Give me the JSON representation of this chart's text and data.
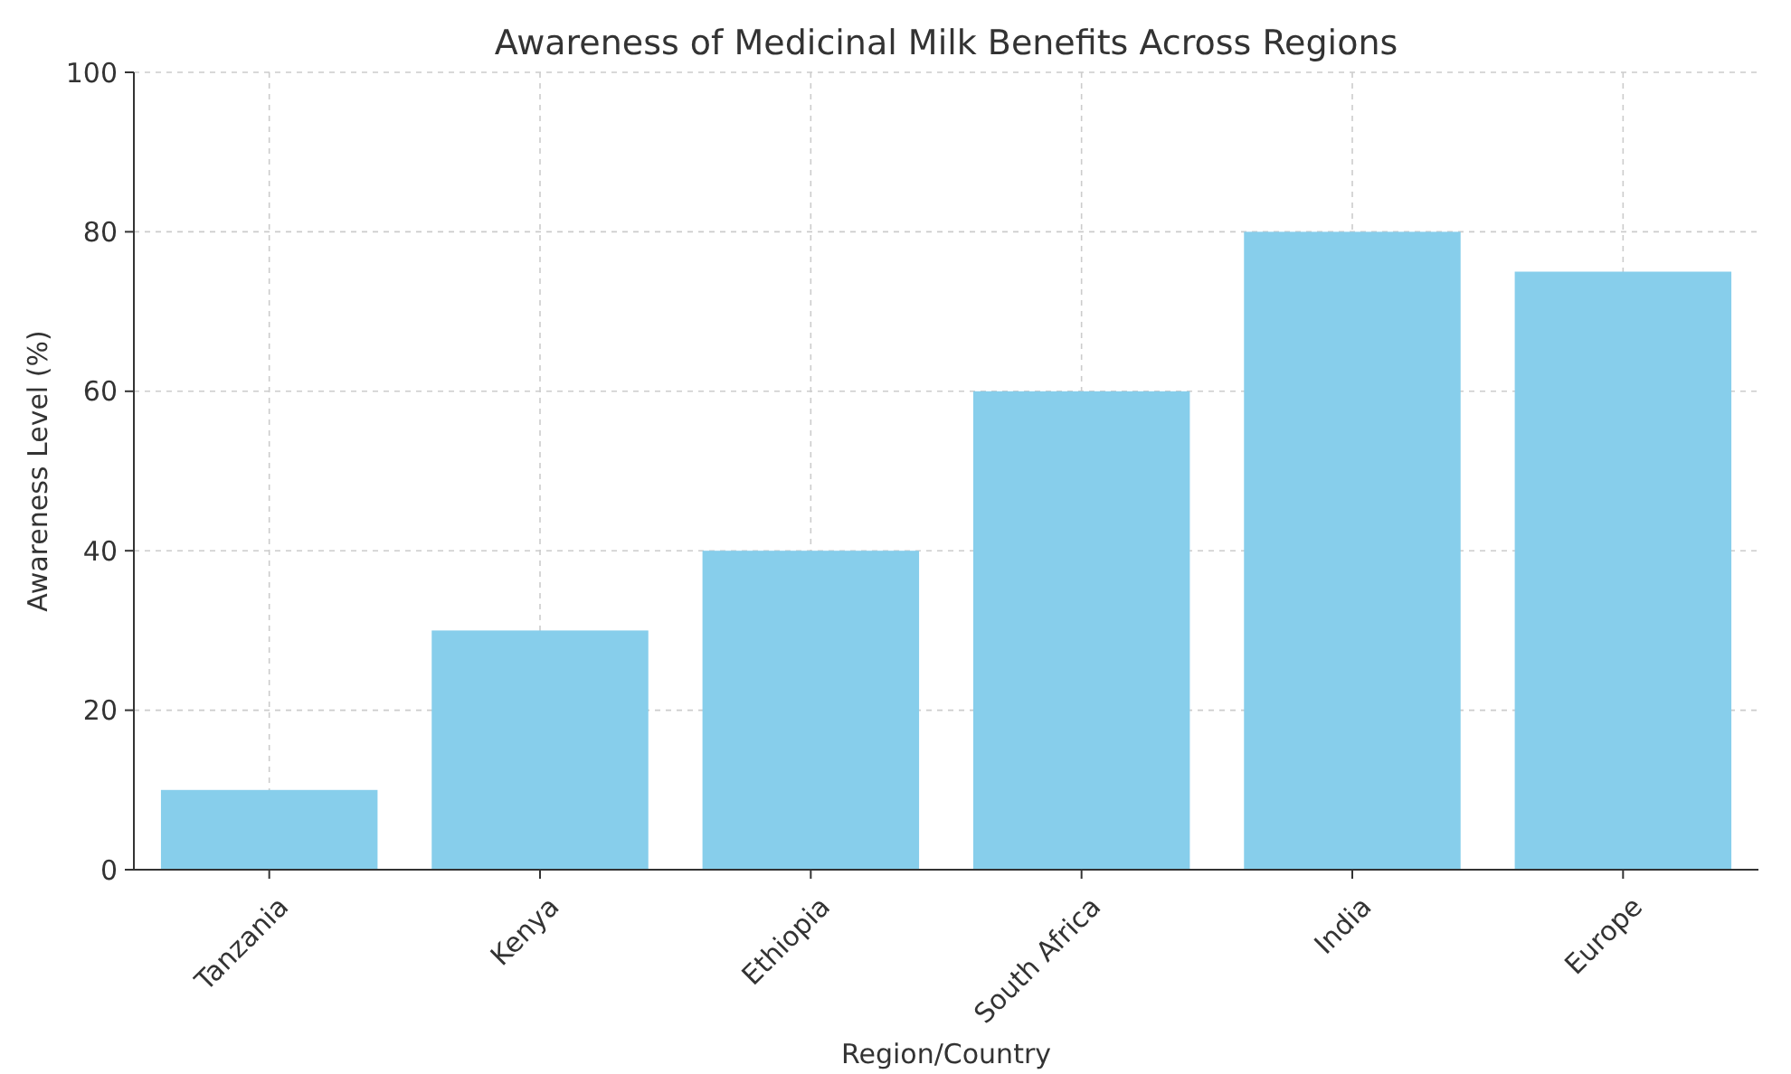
{
  "chart_data": {
    "type": "bar",
    "title": "Awareness of Medicinal Milk Benefits Across Regions",
    "xlabel": "Region/Country",
    "ylabel": "Awareness Level (%)",
    "categories": [
      "Tanzania",
      "Kenya",
      "Ethiopia",
      "South Africa",
      "India",
      "Europe"
    ],
    "values": [
      10,
      30,
      40,
      60,
      80,
      75
    ],
    "color": "#87ceeb",
    "ylim": [
      0,
      100
    ],
    "yticks": [
      0,
      20,
      40,
      60,
      80,
      100
    ],
    "grid": true
  }
}
